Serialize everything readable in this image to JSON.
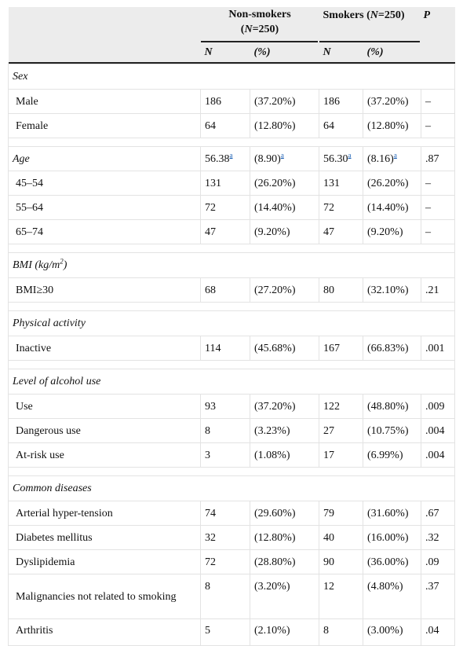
{
  "header": {
    "nonsmokers_label": "Non-smokers",
    "nonsmokers_n": "(N=250)",
    "smokers_label": "Smokers (N=250)",
    "p_label": "P",
    "n_label": "N",
    "pct_label": "(%)"
  },
  "footnote_mark": "a",
  "sections": {
    "sex": {
      "title": "Sex",
      "rows": [
        {
          "label": "Male",
          "ns_n": "186",
          "ns_pct": "(37.20%)",
          "sm_n": "186",
          "sm_pct": "(37.20%)",
          "p": "–"
        },
        {
          "label": "Female",
          "ns_n": "64",
          "ns_pct": "(12.80%)",
          "sm_n": "64",
          "sm_pct": "(12.80%)",
          "p": "–"
        }
      ]
    },
    "age": {
      "title": "Age",
      "ns_n": "56.38",
      "ns_pct": "(8.90)",
      "sm_n": "56.30",
      "sm_pct": "(8.16)",
      "p": ".87",
      "rows": [
        {
          "label": "45–54",
          "ns_n": "131",
          "ns_pct": "(26.20%)",
          "sm_n": "131",
          "sm_pct": "(26.20%)",
          "p": "–"
        },
        {
          "label": "55–64",
          "ns_n": "72",
          "ns_pct": "(14.40%)",
          "sm_n": "72",
          "sm_pct": "(14.40%)",
          "p": "–"
        },
        {
          "label": "65–74",
          "ns_n": "47",
          "ns_pct": "(9.20%)",
          "sm_n": "47",
          "sm_pct": "(9.20%)",
          "p": "–"
        }
      ]
    },
    "bmi": {
      "title": "BMI (kg/m",
      "title_sup": "2",
      "title_end": ")",
      "rows": [
        {
          "label": "BMI≥30",
          "ns_n": "68",
          "ns_pct": "(27.20%)",
          "sm_n": "80",
          "sm_pct": "(32.10%)",
          "p": ".21"
        }
      ]
    },
    "physical": {
      "title": "Physical activity",
      "rows": [
        {
          "label": "Inactive",
          "ns_n": "114",
          "ns_pct": "(45.68%)",
          "sm_n": "167",
          "sm_pct": "(66.83%)",
          "p": ".001"
        }
      ]
    },
    "alcohol": {
      "title": "Level of alcohol use",
      "rows": [
        {
          "label": "Use",
          "ns_n": "93",
          "ns_pct": "(37.20%)",
          "sm_n": "122",
          "sm_pct": "(48.80%)",
          "p": ".009"
        },
        {
          "label": "Dangerous use",
          "ns_n": "8",
          "ns_pct": "(3.23%)",
          "sm_n": "27",
          "sm_pct": "(10.75%)",
          "p": ".004"
        },
        {
          "label": "At-risk use",
          "ns_n": "3",
          "ns_pct": "(1.08%)",
          "sm_n": "17",
          "sm_pct": "(6.99%)",
          "p": ".004"
        }
      ]
    },
    "diseases": {
      "title": "Common diseases",
      "rows": [
        {
          "label": "Arterial hyper-tension",
          "ns_n": "74",
          "ns_pct": "(29.60%)",
          "sm_n": "79",
          "sm_pct": "(31.60%)",
          "p": ".67"
        },
        {
          "label": "Diabetes mellitus",
          "ns_n": "32",
          "ns_pct": "(12.80%)",
          "sm_n": "40",
          "sm_pct": "(16.00%)",
          "p": ".32"
        },
        {
          "label": "Dyslipidemia",
          "ns_n": "72",
          "ns_pct": "(28.80%)",
          "sm_n": "90",
          "sm_pct": "(36.00%)",
          "p": ".09"
        },
        {
          "label": "Malignancies not related to smoking",
          "ns_n": "8",
          "ns_pct": "(3.20%)",
          "sm_n": "12",
          "sm_pct": "(4.80%)",
          "p": ".37"
        },
        {
          "label": "Arthritis",
          "ns_n": "5",
          "ns_pct": "(2.10%)",
          "sm_n": "8",
          "sm_pct": "(3.00%)",
          "p": ".04"
        }
      ]
    }
  }
}
